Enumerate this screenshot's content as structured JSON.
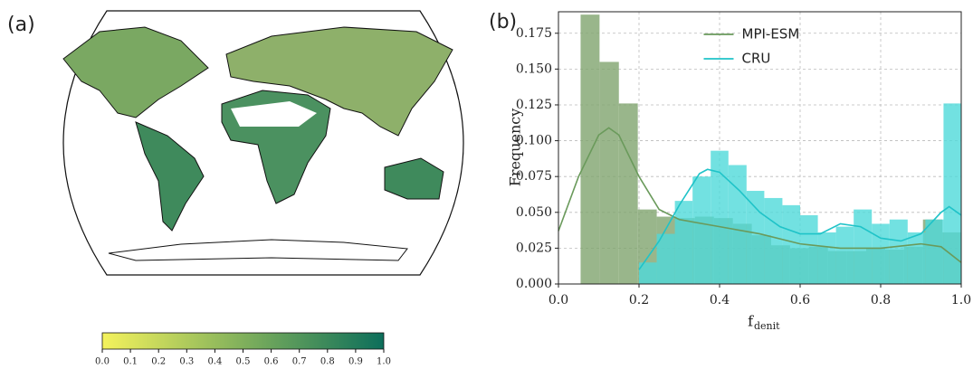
{
  "chart_data": [
    {
      "type": "map",
      "panel_label": "(a)",
      "colorbar": {
        "clim": [
          0,
          1
        ],
        "colors": [
          "#f4f25c",
          "#0c6e5b"
        ],
        "ticks": [
          {
            "value": 0,
            "label": "0.0"
          },
          {
            "value": 0.1,
            "label": "0.1"
          },
          {
            "value": 0.2,
            "label": "0.2"
          },
          {
            "value": 0.3,
            "label": "0.3"
          },
          {
            "value": 0.4,
            "label": "0.4"
          },
          {
            "value": 0.5,
            "label": "0.5"
          },
          {
            "value": 0.6,
            "label": "0.6"
          },
          {
            "value": 0.7,
            "label": "0.7"
          },
          {
            "value": 0.8,
            "label": "0.8"
          },
          {
            "value": 0.9,
            "label": "0.9"
          },
          {
            "value": 1,
            "label": "1.0"
          }
        ]
      }
    },
    {
      "type": "histogram",
      "panel_label": "(b)",
      "xlabel": "f",
      "xlabel_sub": "denit",
      "ylabel": "Frequency",
      "xlim": [
        0,
        1
      ],
      "ylim": [
        0,
        0.19
      ],
      "grid": true,
      "legend": "upper center",
      "xticks": [
        {
          "value": 0,
          "label": "0.0"
        },
        0.2,
        0.4,
        0.6,
        0.8,
        {
          "value": 1,
          "label": "1.0"
        }
      ],
      "yticks": [
        {
          "value": 0,
          "label": "0.000"
        },
        {
          "value": 0.025,
          "label": "0.025"
        },
        {
          "value": 0.05,
          "label": "0.050"
        },
        {
          "value": 0.075,
          "label": "0.075"
        },
        {
          "value": 0.1,
          "label": "0.100"
        },
        {
          "value": 0.125,
          "label": "0.125"
        },
        {
          "value": 0.15,
          "label": "0.150"
        },
        {
          "value": 0.175,
          "label": "0.175"
        }
      ],
      "series": [
        {
          "name": "MPI-ESM",
          "color": "#6a9a5b",
          "bar_color": "#7fa46e",
          "bins": [
            0.055,
            0.102,
            0.15,
            0.197,
            0.244,
            0.291,
            0.339,
            0.386,
            0.433,
            0.48,
            0.528,
            0.575,
            0.622,
            0.669,
            0.716,
            0.764,
            0.811,
            0.858,
            0.905,
            0.953,
            1.0
          ],
          "counts": [
            0.188,
            0.155,
            0.126,
            0.052,
            0.047,
            0.046,
            0.047,
            0.046,
            0.042,
            0.034,
            0.027,
            0.025,
            0.026,
            0.023,
            0.023,
            0.025,
            0.024,
            0.026,
            0.045,
            0.036
          ],
          "kde": {
            "x": [
              0,
              0.05,
              0.1,
              0.125,
              0.15,
              0.2,
              0.25,
              0.3,
              0.4,
              0.5,
              0.6,
              0.7,
              0.8,
              0.9,
              0.95,
              1.0
            ],
            "y": [
              0.037,
              0.075,
              0.104,
              0.109,
              0.104,
              0.075,
              0.052,
              0.045,
              0.04,
              0.035,
              0.028,
              0.025,
              0.025,
              0.028,
              0.026,
              0.015
            ]
          }
        },
        {
          "name": "CRU",
          "color": "#1fc3c8",
          "bar_color": "#4fdada",
          "bins": [
            0.2,
            0.244,
            0.289,
            0.333,
            0.378,
            0.422,
            0.467,
            0.511,
            0.556,
            0.6,
            0.644,
            0.689,
            0.733,
            0.778,
            0.822,
            0.867,
            0.911,
            0.956,
            1.0
          ],
          "counts": [
            0.015,
            0.035,
            0.058,
            0.075,
            0.093,
            0.083,
            0.065,
            0.06,
            0.055,
            0.048,
            0.036,
            0.04,
            0.052,
            0.042,
            0.045,
            0.036,
            0.045,
            0.126
          ],
          "kde": {
            "x": [
              0.2,
              0.25,
              0.3,
              0.35,
              0.37,
              0.4,
              0.45,
              0.5,
              0.55,
              0.6,
              0.65,
              0.7,
              0.75,
              0.8,
              0.85,
              0.9,
              0.95,
              0.97,
              1.0
            ],
            "y": [
              0.01,
              0.03,
              0.055,
              0.077,
              0.08,
              0.078,
              0.065,
              0.05,
              0.04,
              0.035,
              0.035,
              0.042,
              0.04,
              0.032,
              0.03,
              0.035,
              0.05,
              0.054,
              0.048
            ]
          }
        }
      ]
    }
  ]
}
